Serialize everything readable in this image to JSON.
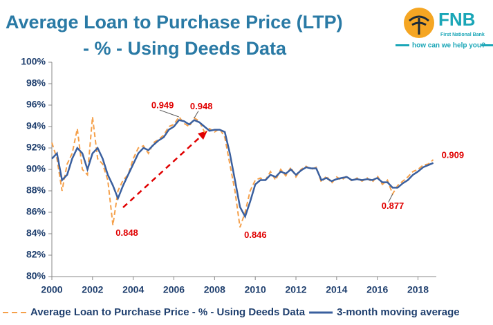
{
  "chart_data": {
    "type": "line",
    "title": "Average Loan to Purchase Price (LTP)",
    "subtitle": "- % - Using Deeds Data",
    "logo": {
      "name": "FNB",
      "subname": "First National Bank",
      "tagline": "how can we help you?"
    },
    "x": [
      2000,
      2000.25,
      2000.5,
      2000.75,
      2001,
      2001.25,
      2001.5,
      2001.75,
      2002,
      2002.25,
      2002.5,
      2002.75,
      2003,
      2003.25,
      2003.5,
      2003.75,
      2004,
      2004.25,
      2004.5,
      2004.75,
      2005,
      2005.25,
      2005.5,
      2005.75,
      2006,
      2006.25,
      2006.5,
      2006.75,
      2007,
      2007.25,
      2007.5,
      2007.75,
      2008,
      2008.25,
      2008.5,
      2008.75,
      2009,
      2009.25,
      2009.5,
      2009.75,
      2010,
      2010.25,
      2010.5,
      2010.75,
      2011,
      2011.25,
      2011.5,
      2011.75,
      2012,
      2012.25,
      2012.5,
      2012.75,
      2013,
      2013.25,
      2013.5,
      2013.75,
      2014,
      2014.25,
      2014.5,
      2014.75,
      2015,
      2015.25,
      2015.5,
      2015.75,
      2016,
      2016.25,
      2016.5,
      2016.75,
      2017,
      2017.25,
      2017.5,
      2017.75,
      2018,
      2018.25,
      2018.5,
      2018.75
    ],
    "series": [
      {
        "name": "Average Loan to Purchase Price - % - Using Deeds Data",
        "color": "#f5a04a",
        "dashed": true,
        "values": [
          92.5,
          91.0,
          88.0,
          90.5,
          91.5,
          93.8,
          90.0,
          89.5,
          94.9,
          91.0,
          90.5,
          89.0,
          84.8,
          88.0,
          89.0,
          89.5,
          91.0,
          92.0,
          92.2,
          91.5,
          92.5,
          92.8,
          93.2,
          94.0,
          94.2,
          94.9,
          94.3,
          94.0,
          94.8,
          94.5,
          93.5,
          93.8,
          93.5,
          93.8,
          93.0,
          90.5,
          88.0,
          84.6,
          86.0,
          88.0,
          89.0,
          89.2,
          89.0,
          89.8,
          89.0,
          90.0,
          89.4,
          90.2,
          89.3,
          90.0,
          90.3,
          90.0,
          90.2,
          88.8,
          89.4,
          88.7,
          89.3,
          89.0,
          89.4,
          88.9,
          89.2,
          88.9,
          89.2,
          88.8,
          89.4,
          88.6,
          89.0,
          87.7,
          88.5,
          88.9,
          89.3,
          89.8,
          90.0,
          90.4,
          90.5,
          90.9
        ]
      },
      {
        "name": "3-month moving average",
        "color": "#3a5f9e",
        "dashed": false,
        "values": [
          91.0,
          91.5,
          89.0,
          89.5,
          91.0,
          92.0,
          91.5,
          90.0,
          91.5,
          92.0,
          91.0,
          89.5,
          88.5,
          87.3,
          88.5,
          89.5,
          90.5,
          91.5,
          92.0,
          91.8,
          92.3,
          92.7,
          93.0,
          93.7,
          94.0,
          94.6,
          94.5,
          94.2,
          94.6,
          94.4,
          94.0,
          93.6,
          93.7,
          93.7,
          93.5,
          91.5,
          89.0,
          86.5,
          85.6,
          87.0,
          88.6,
          89.0,
          89.0,
          89.5,
          89.3,
          89.8,
          89.6,
          90.0,
          89.5,
          89.9,
          90.2,
          90.1,
          90.1,
          89.0,
          89.2,
          88.9,
          89.1,
          89.2,
          89.3,
          89.0,
          89.1,
          89.0,
          89.1,
          89.0,
          89.2,
          88.8,
          88.8,
          88.3,
          88.3,
          88.7,
          89.0,
          89.5,
          89.8,
          90.2,
          90.4,
          90.6
        ]
      }
    ],
    "annotations": [
      {
        "text": "0.848",
        "x": 2003,
        "y": 84.8
      },
      {
        "text": "0.949",
        "x": 2006.25,
        "y": 94.9
      },
      {
        "text": "0.948",
        "x": 2007,
        "y": 94.8
      },
      {
        "text": "0.846",
        "x": 2009.25,
        "y": 84.6
      },
      {
        "text": "0.877",
        "x": 2016.75,
        "y": 87.7
      },
      {
        "text": "0.909",
        "x": 2018.75,
        "y": 90.9
      }
    ],
    "xlim": [
      2000,
      2018.9
    ],
    "xticks": [
      2000,
      2002,
      2004,
      2006,
      2008,
      2010,
      2012,
      2014,
      2016,
      2018
    ],
    "ylim": [
      80,
      100
    ],
    "yticks": [
      {
        "value": 80,
        "label": "80%"
      },
      {
        "value": 82,
        "label": "82%"
      },
      {
        "value": 84,
        "label": "84%"
      },
      {
        "value": 86,
        "label": "86%"
      },
      {
        "value": 88,
        "label": "88%"
      },
      {
        "value": 90,
        "label": "90%"
      },
      {
        "value": 92,
        "label": "92%"
      },
      {
        "value": 94,
        "label": "94%"
      },
      {
        "value": 96,
        "label": "96%"
      },
      {
        "value": 98,
        "label": "98%"
      },
      {
        "value": 100,
        "label": "100%"
      }
    ],
    "grid": false,
    "legend": "bottom"
  }
}
